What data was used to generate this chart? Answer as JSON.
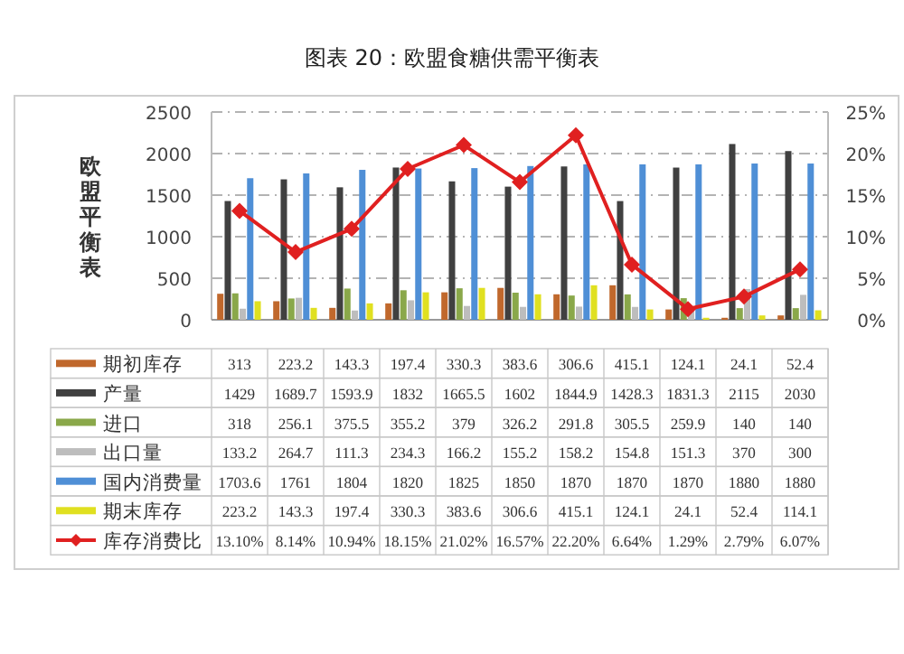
{
  "chart_data": {
    "type": "bar",
    "title": "图表 20：欧盟食糖供需平衡表",
    "ylabel": "欧盟平衡表",
    "categories": [
      null,
      null,
      null,
      null,
      null,
      null,
      null,
      null,
      null,
      null,
      null
    ],
    "ylim": [
      0,
      2500
    ],
    "yticks": [
      0,
      500,
      1000,
      1500,
      2000,
      2500
    ],
    "y2lim": [
      0,
      25
    ],
    "y2ticks": [
      {
        "value": 0,
        "label": "0%"
      },
      {
        "value": 5,
        "label": "5%"
      },
      {
        "value": 10,
        "label": "10%"
      },
      {
        "value": 15,
        "label": "15%"
      },
      {
        "value": 20,
        "label": "20%"
      },
      {
        "value": 25,
        "label": "25%"
      }
    ],
    "grid": "y",
    "legend": "bottom",
    "series": [
      {
        "name": "期初库存",
        "color": "#c0682c",
        "values": [
          313,
          223.2,
          143.3,
          197.4,
          330.3,
          383.6,
          306.6,
          415.1,
          124.1,
          24.1,
          52.4
        ],
        "value_labels": [
          "313",
          "223.2",
          "143.3",
          "197.4",
          "330.3",
          "383.6",
          "306.6",
          "415.1",
          "124.1",
          "24.1",
          "52.4"
        ]
      },
      {
        "name": "产量",
        "color": "#404040",
        "values": [
          1429,
          1689.7,
          1593.9,
          1832,
          1665.5,
          1602,
          1844.9,
          1428.3,
          1831.3,
          2115,
          2030
        ],
        "value_labels": [
          "1429",
          "1689.7",
          "1593.9",
          "1832",
          "1665.5",
          "1602",
          "1844.9",
          "1428.3",
          "1831.3",
          "2115",
          "2030"
        ]
      },
      {
        "name": "进口",
        "color": "#8aa84a",
        "values": [
          318,
          256.1,
          375.5,
          355.2,
          379,
          326.2,
          291.8,
          305.5,
          259.9,
          140,
          140
        ],
        "value_labels": [
          "318",
          "256.1",
          "375.5",
          "355.2",
          "379",
          "326.2",
          "291.8",
          "305.5",
          "259.9",
          "140",
          "140"
        ]
      },
      {
        "name": "出口量",
        "color": "#bdbdbd",
        "values": [
          133.2,
          264.7,
          111.3,
          234.3,
          166.2,
          155.2,
          158.2,
          154.8,
          151.3,
          370,
          300
        ],
        "value_labels": [
          "133.2",
          "264.7",
          "111.3",
          "234.3",
          "166.2",
          "155.2",
          "158.2",
          "154.8",
          "151.3",
          "370",
          "300"
        ]
      },
      {
        "name": "国内消费量",
        "color": "#4f8fd6",
        "values": [
          1703.6,
          1761,
          1804,
          1820,
          1825,
          1850,
          1870,
          1870,
          1870,
          1880,
          1880
        ],
        "value_labels": [
          "1703.6",
          "1761",
          "1804",
          "1820",
          "1825",
          "1850",
          "1870",
          "1870",
          "1870",
          "1880",
          "1880"
        ]
      },
      {
        "name": "期末库存",
        "color": "#e0e020",
        "values": [
          223.2,
          143.3,
          197.4,
          330.3,
          383.6,
          306.6,
          415.1,
          124.1,
          24.1,
          52.4,
          114.1
        ],
        "value_labels": [
          "223.2",
          "143.3",
          "197.4",
          "330.3",
          "383.6",
          "306.6",
          "415.1",
          "124.1",
          "24.1",
          "52.4",
          "114.1"
        ]
      },
      {
        "name": "库存消费比",
        "type": "line",
        "axis": "y2",
        "marker": "diamond",
        "color": "#e02020",
        "values": [
          13.1,
          8.14,
          10.94,
          18.15,
          21.02,
          16.57,
          22.2,
          6.64,
          1.29,
          2.79,
          6.07
        ],
        "value_labels": [
          "13.10%",
          "8.14%",
          "10.94%",
          "18.15%",
          "21.02%",
          "16.57%",
          "22.20%",
          "6.64%",
          "1.29%",
          "2.79%",
          "6.07%"
        ]
      }
    ]
  }
}
